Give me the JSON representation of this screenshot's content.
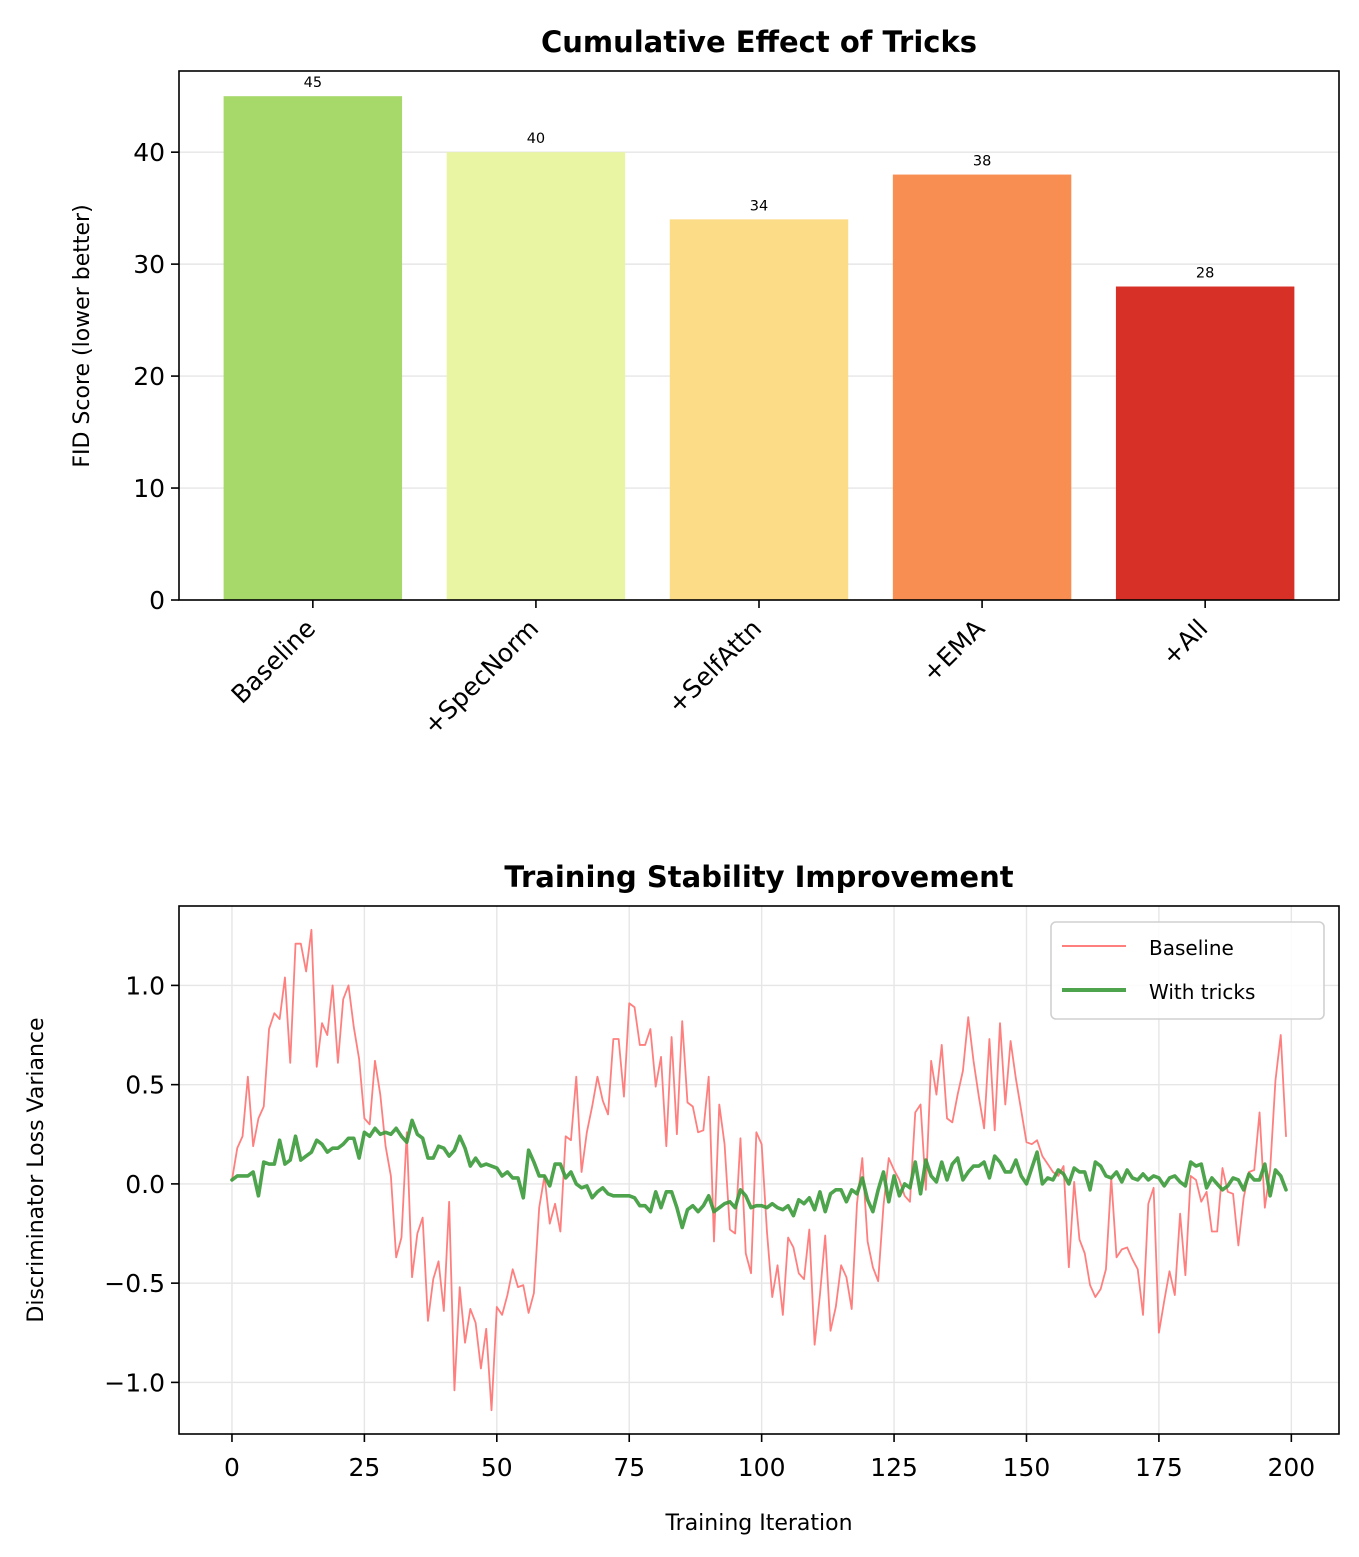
{
  "chart_data": [
    {
      "type": "bar",
      "title": "Cumulative Effect of Tricks",
      "xlabel": "",
      "ylabel": "FID Score (lower better)",
      "categories": [
        "Baseline",
        "+SpecNorm",
        "+SelfAttn",
        "+EMA",
        "+All"
      ],
      "values": [
        45,
        40,
        34,
        38,
        28
      ],
      "data_labels": [
        "45",
        "40",
        "34",
        "38",
        "28"
      ],
      "colors": [
        "#a6d96a",
        "#e9f5a3",
        "#fddc88",
        "#f88e52",
        "#d73027"
      ],
      "ylim": [
        0,
        47.25
      ],
      "yticks": [
        0,
        10,
        20,
        30,
        40
      ],
      "ytick_labels": [
        "0",
        "10",
        "20",
        "30",
        "40"
      ],
      "xtick_rotation": 45,
      "grid": "y"
    },
    {
      "type": "line",
      "title": "Training Stability Improvement",
      "xlabel": "Training Iteration",
      "ylabel": "Discriminator Loss Variance",
      "xlim": [
        -10,
        209
      ],
      "ylim": [
        -1.26,
        1.4
      ],
      "xticks": [
        0,
        25,
        50,
        75,
        100,
        125,
        150,
        175,
        200
      ],
      "xtick_labels": [
        "0",
        "25",
        "50",
        "75",
        "100",
        "125",
        "150",
        "175",
        "200"
      ],
      "yticks": [
        -1.0,
        -0.5,
        0.0,
        0.5,
        1.0
      ],
      "ytick_labels": [
        "−1.0",
        "−0.5",
        "0.0",
        "0.5",
        "1.0"
      ],
      "grid": "both",
      "legend": "top-right",
      "series": [
        {
          "name": "Baseline",
          "color": "#ff7f7f",
          "style": "thin",
          "values": [
            0.02,
            0.18,
            0.24,
            0.54,
            0.19,
            0.33,
            0.39,
            0.78,
            0.86,
            0.83,
            1.04,
            0.61,
            1.21,
            1.21,
            1.07,
            1.28,
            0.59,
            0.81,
            0.75,
            1.0,
            0.61,
            0.93,
            1.0,
            0.79,
            0.63,
            0.33,
            0.3,
            0.62,
            0.45,
            0.19,
            0.04,
            -0.37,
            -0.27,
            0.26,
            -0.47,
            -0.25,
            -0.17,
            -0.69,
            -0.48,
            -0.39,
            -0.64,
            -0.09,
            -1.04,
            -0.52,
            -0.8,
            -0.63,
            -0.7,
            -0.93,
            -0.73,
            -1.14,
            -0.62,
            -0.66,
            -0.56,
            -0.43,
            -0.52,
            -0.51,
            -0.65,
            -0.55,
            -0.12,
            0.04,
            -0.2,
            -0.1,
            -0.24,
            0.24,
            0.22,
            0.54,
            0.06,
            0.26,
            0.39,
            0.54,
            0.42,
            0.35,
            0.73,
            0.73,
            0.44,
            0.91,
            0.89,
            0.7,
            0.7,
            0.78,
            0.49,
            0.64,
            0.19,
            0.74,
            0.25,
            0.82,
            0.41,
            0.39,
            0.26,
            0.27,
            0.54,
            -0.29,
            0.4,
            0.2,
            -0.23,
            -0.25,
            0.23,
            -0.35,
            -0.45,
            0.26,
            0.2,
            -0.24,
            -0.57,
            -0.41,
            -0.66,
            -0.27,
            -0.32,
            -0.45,
            -0.48,
            -0.23,
            -0.81,
            -0.56,
            -0.26,
            -0.74,
            -0.62,
            -0.41,
            -0.47,
            -0.63,
            -0.1,
            0.13,
            -0.29,
            -0.42,
            -0.49,
            -0.11,
            0.13,
            0.07,
            0.02,
            -0.06,
            -0.09,
            0.36,
            0.4,
            -0.03,
            0.62,
            0.45,
            0.7,
            0.33,
            0.31,
            0.45,
            0.57,
            0.84,
            0.62,
            0.44,
            0.28,
            0.73,
            0.27,
            0.81,
            0.4,
            0.72,
            0.53,
            0.37,
            0.21,
            0.2,
            0.22,
            0.14,
            0.1,
            0.06,
            0.04,
            0.09,
            -0.42,
            0.01,
            -0.28,
            -0.35,
            -0.51,
            -0.57,
            -0.53,
            -0.43,
            0.03,
            -0.37,
            -0.33,
            -0.32,
            -0.38,
            -0.43,
            -0.66,
            -0.1,
            -0.02,
            -0.75,
            -0.59,
            -0.44,
            -0.56,
            -0.15,
            -0.46,
            0.04,
            0.02,
            -0.09,
            -0.04,
            -0.24,
            -0.24,
            0.08,
            -0.04,
            -0.05,
            -0.31,
            -0.07,
            0.06,
            0.07,
            0.36,
            -0.12,
            0.07,
            0.52,
            0.75,
            0.24
          ]
        },
        {
          "name": "With tricks",
          "color": "#3a9a3a",
          "style": "thick",
          "values": [
            0.02,
            0.04,
            0.04,
            0.04,
            0.06,
            -0.06,
            0.11,
            0.1,
            0.1,
            0.22,
            0.1,
            0.12,
            0.24,
            0.12,
            0.14,
            0.16,
            0.22,
            0.2,
            0.16,
            0.18,
            0.18,
            0.2,
            0.23,
            0.23,
            0.13,
            0.26,
            0.24,
            0.28,
            0.25,
            0.26,
            0.25,
            0.28,
            0.24,
            0.21,
            0.32,
            0.25,
            0.23,
            0.13,
            0.13,
            0.19,
            0.18,
            0.14,
            0.17,
            0.24,
            0.18,
            0.09,
            0.13,
            0.09,
            0.1,
            0.09,
            0.08,
            0.04,
            0.06,
            0.03,
            0.03,
            -0.07,
            0.17,
            0.11,
            0.04,
            0.04,
            -0.01,
            0.1,
            0.1,
            0.03,
            0.06,
            0.0,
            -0.02,
            -0.01,
            -0.07,
            -0.04,
            -0.02,
            -0.05,
            -0.06,
            -0.06,
            -0.06,
            -0.06,
            -0.07,
            -0.11,
            -0.11,
            -0.14,
            -0.04,
            -0.12,
            -0.04,
            -0.04,
            -0.12,
            -0.22,
            -0.13,
            -0.11,
            -0.14,
            -0.11,
            -0.06,
            -0.14,
            -0.12,
            -0.1,
            -0.09,
            -0.12,
            -0.03,
            -0.06,
            -0.12,
            -0.11,
            -0.11,
            -0.12,
            -0.1,
            -0.12,
            -0.13,
            -0.11,
            -0.16,
            -0.08,
            -0.1,
            -0.07,
            -0.13,
            -0.04,
            -0.14,
            -0.05,
            -0.03,
            -0.03,
            -0.09,
            -0.03,
            -0.05,
            0.03,
            -0.08,
            -0.14,
            -0.03,
            0.06,
            -0.09,
            0.04,
            -0.06,
            0.0,
            -0.02,
            0.11,
            -0.05,
            0.12,
            0.04,
            0.01,
            0.11,
            0.02,
            0.1,
            0.13,
            0.02,
            0.06,
            0.09,
            0.09,
            0.11,
            0.03,
            0.14,
            0.11,
            0.06,
            0.06,
            0.12,
            0.04,
            0.0,
            0.08,
            0.16,
            0.0,
            0.03,
            0.02,
            0.07,
            0.05,
            0.0,
            0.08,
            0.06,
            0.06,
            -0.03,
            0.11,
            0.09,
            0.04,
            0.03,
            0.06,
            0.01,
            0.07,
            0.03,
            0.02,
            0.05,
            0.02,
            0.04,
            0.03,
            -0.01,
            0.03,
            0.04,
            0.01,
            -0.01,
            0.11,
            0.09,
            0.1,
            -0.02,
            0.03,
            0.0,
            -0.03,
            -0.01,
            0.03,
            0.02,
            -0.03,
            0.05,
            0.02,
            0.02,
            0.1,
            -0.06,
            0.07,
            0.04,
            -0.03
          ]
        }
      ]
    }
  ]
}
